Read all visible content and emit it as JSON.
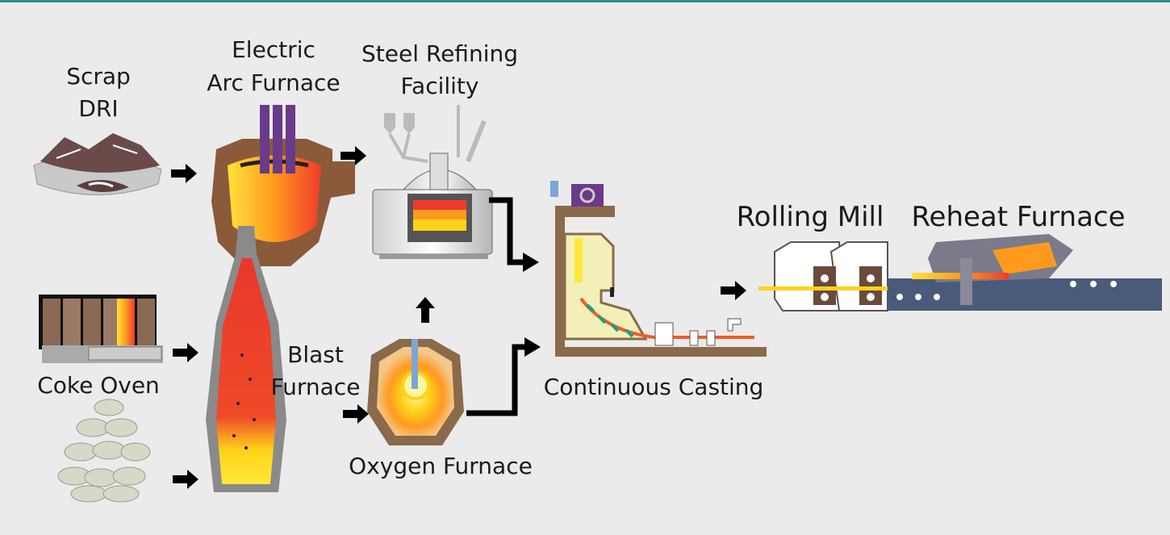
{
  "nodes": [
    {
      "label": [
        "Scrap",
        "DRI"
      ]
    },
    {
      "label": [
        "Electric",
        "Arc Furnace"
      ]
    },
    {
      "label": [
        "Steel Refining",
        "Facility"
      ]
    },
    {
      "label": [
        "Rolling Mill"
      ]
    },
    {
      "label": [
        "Reheat Furnace"
      ]
    },
    {
      "label": [
        "Coke Oven"
      ]
    },
    {
      "label": [
        "Blast",
        "Furnace"
      ]
    },
    {
      "label": [
        "Oxygen Furnace"
      ]
    },
    {
      "label": [
        "Continuous Casting"
      ]
    }
  ]
}
